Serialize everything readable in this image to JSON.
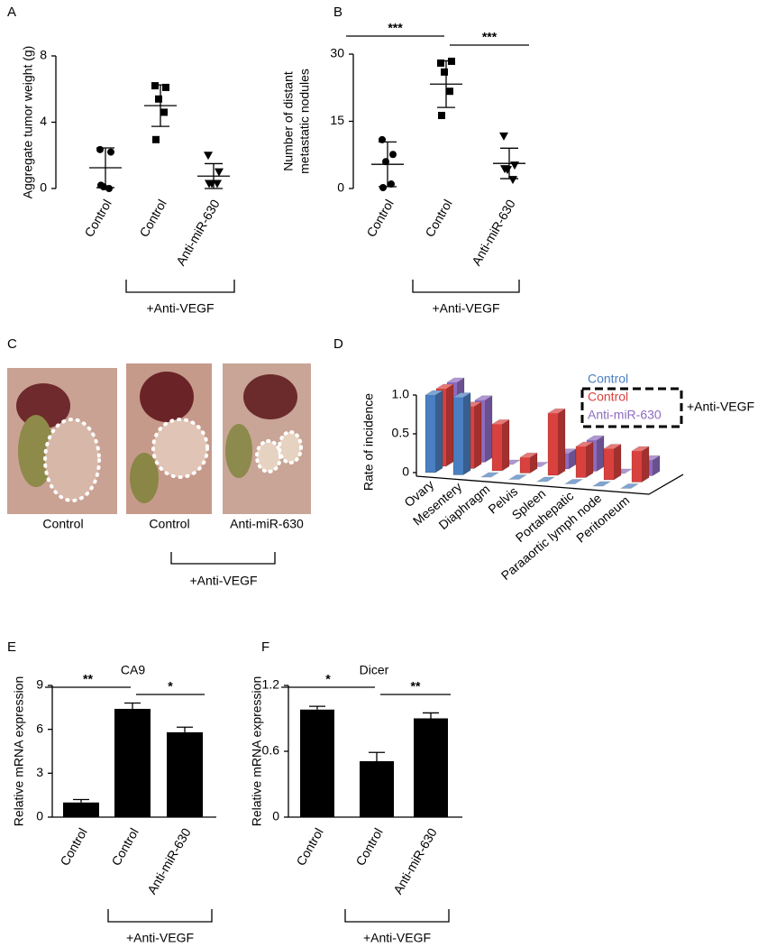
{
  "chart_data": [
    {
      "panel": "A",
      "type": "dot",
      "ylabel": [
        "Aggregate tumor weight (g)"
      ],
      "categories": [
        "Control",
        "Control",
        "Anti-miR-630"
      ],
      "markers": [
        "circle",
        "square",
        "triangle"
      ],
      "color": "#000000",
      "points": [
        [
          2.35,
          2.2,
          0.1,
          0,
          0.2
        ],
        [
          6.2,
          6.1,
          5.4,
          4.6,
          2.95
        ],
        [
          2.0,
          1.0,
          0.3,
          0.3,
          0.3
        ]
      ],
      "mean": [
        1.25,
        5.0,
        0.75
      ],
      "sd": [
        1.2,
        1.25,
        0.75
      ],
      "ylim": [
        0,
        8
      ],
      "yticks": [
        0,
        4,
        8
      ],
      "group_label": "+Anti-VEGF"
    },
    {
      "panel": "B",
      "type": "dot",
      "ylabel": [
        "Number of distant",
        "metastatic nodules"
      ],
      "categories": [
        "Control",
        "Control",
        "Anti-miR-630"
      ],
      "markers": [
        "circle",
        "square",
        "triangle"
      ],
      "color": "#000000",
      "points": [
        [
          10.9,
          7.6,
          6.0,
          1.0,
          0.2
        ],
        [
          28,
          28.4,
          26,
          21.7,
          16.3
        ],
        [
          11.7,
          5.2,
          4.2,
          2.0,
          4.4
        ]
      ],
      "mean": [
        5.4,
        23.3,
        5.6
      ],
      "sd": [
        5,
        5.2,
        3.4
      ],
      "ylim": [
        0,
        30
      ],
      "yticks": [
        0,
        15,
        30
      ],
      "significance": [
        "***",
        "***"
      ],
      "group_label": "+Anti-VEGF"
    },
    {
      "panel": "D",
      "type": "bar3d",
      "ylabel": [
        "Rate of incidence"
      ],
      "categories": [
        "Ovary",
        "Mesentery",
        "Diaphragm",
        "Pelvis",
        "Spleen",
        "Portahepatic",
        "Paraaortic lymph node",
        "Peritoneum"
      ],
      "series": [
        {
          "name": "Control",
          "color": "#4a7fc1",
          "values": [
            1.0,
            1.0,
            0,
            0,
            0,
            0,
            0,
            0
          ]
        },
        {
          "name": "Control",
          "color": "#d9413e",
          "values": [
            1.0,
            0.8,
            0.6,
            0.2,
            0.8,
            0.4,
            0.4,
            0.4
          ]
        },
        {
          "name": "Anti-miR-630",
          "color": "#8e6bbf",
          "values": [
            1.0,
            0.8,
            0,
            0,
            0.2,
            0.4,
            0,
            0.2
          ]
        }
      ],
      "ylim": [
        0,
        1
      ],
      "yticks": [
        0,
        0.5,
        {
          "value": 1,
          "label": "1.0"
        }
      ],
      "group_label": "+Anti-VEGF"
    },
    {
      "panel": "E",
      "type": "bar",
      "title": "CA9",
      "ylabel": [
        "Relative mRNA expression"
      ],
      "categories": [
        "Control",
        "Control",
        "Anti-miR-630"
      ],
      "values": [
        1.0,
        7.4,
        5.8
      ],
      "errors": [
        0.2,
        0.4,
        0.35
      ],
      "color": "#000000",
      "ylim": [
        0,
        9
      ],
      "yticks": [
        0,
        3,
        6,
        9
      ],
      "significance": [
        "**",
        "*"
      ],
      "group_label": "+Anti-VEGF"
    },
    {
      "panel": "F",
      "type": "bar",
      "title": "Dicer",
      "ylabel": [
        "Relative mRNA expression"
      ],
      "categories": [
        "Control",
        "Control",
        "Anti-miR-630"
      ],
      "values": [
        0.98,
        0.51,
        0.9
      ],
      "errors": [
        0.03,
        0.08,
        0.05
      ],
      "color": "#000000",
      "ylim": [
        0,
        1.2
      ],
      "yticks": [
        0,
        0.6,
        1.2
      ],
      "significance": [
        "*",
        "**"
      ],
      "group_label": "+Anti-VEGF"
    }
  ],
  "photo_panel": {
    "panel": "C",
    "captions": [
      "Control",
      "Control",
      "Anti-miR-630"
    ],
    "group_label": "+Anti-VEGF"
  }
}
